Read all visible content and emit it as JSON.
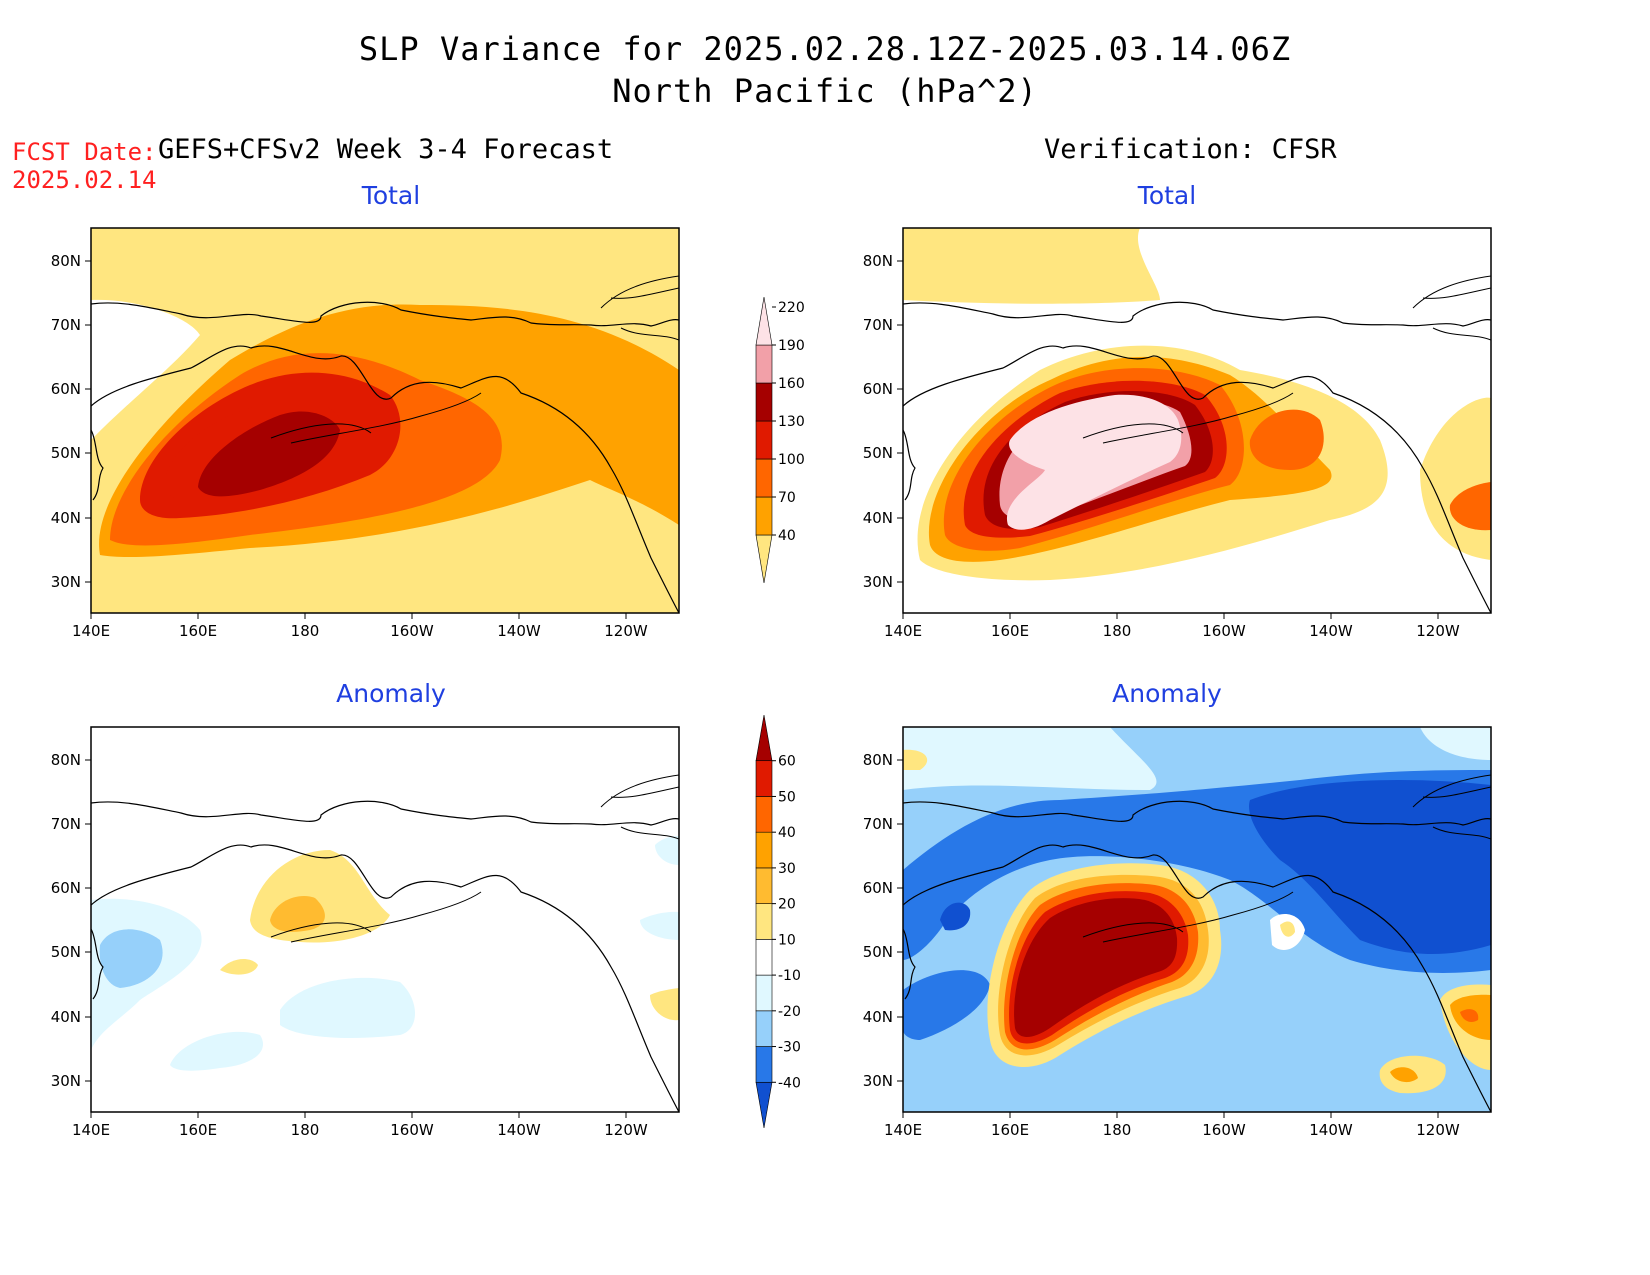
{
  "title_line1": "SLP Variance for 2025.02.28.12Z-2025.03.14.06Z",
  "title_line2": "North Pacific (hPa^2)",
  "fcst_label": "FCST Date:",
  "fcst_date": "2025.02.14",
  "left_header": "GEFS+CFSv2 Week 3-4 Forecast",
  "right_header": "Verification: CFSR",
  "panels": [
    {
      "id": "forecast-total",
      "subtitle": "Total"
    },
    {
      "id": "verification-total",
      "subtitle": "Total"
    },
    {
      "id": "forecast-anomaly",
      "subtitle": "Anomaly"
    },
    {
      "id": "verification-anomaly",
      "subtitle": "Anomaly"
    }
  ],
  "lat_labels": [
    "80N",
    "70N",
    "60N",
    "50N",
    "40N",
    "30N"
  ],
  "lon_labels": [
    "140E",
    "160E",
    "180",
    "160W",
    "140W",
    "120W"
  ],
  "total_colorbar": {
    "levels": [
      "40",
      "70",
      "100",
      "130",
      "160",
      "190",
      "220"
    ],
    "colors": [
      "#ffe680",
      "#ffa200",
      "#ff6600",
      "#e01a00",
      "#a50000",
      "#f2a0a8",
      "#fde2e6"
    ]
  },
  "anomaly_colorbar": {
    "levels": [
      "-40",
      "-30",
      "-20",
      "-10",
      "10",
      "20",
      "30",
      "40",
      "50",
      "60"
    ],
    "colors": [
      "#1050d0",
      "#2878e8",
      "#96d0fa",
      "#e0f8ff",
      "#ffffff",
      "#ffe680",
      "#ffbb30",
      "#ffa200",
      "#ff6600",
      "#e01a00",
      "#a50000"
    ]
  }
}
